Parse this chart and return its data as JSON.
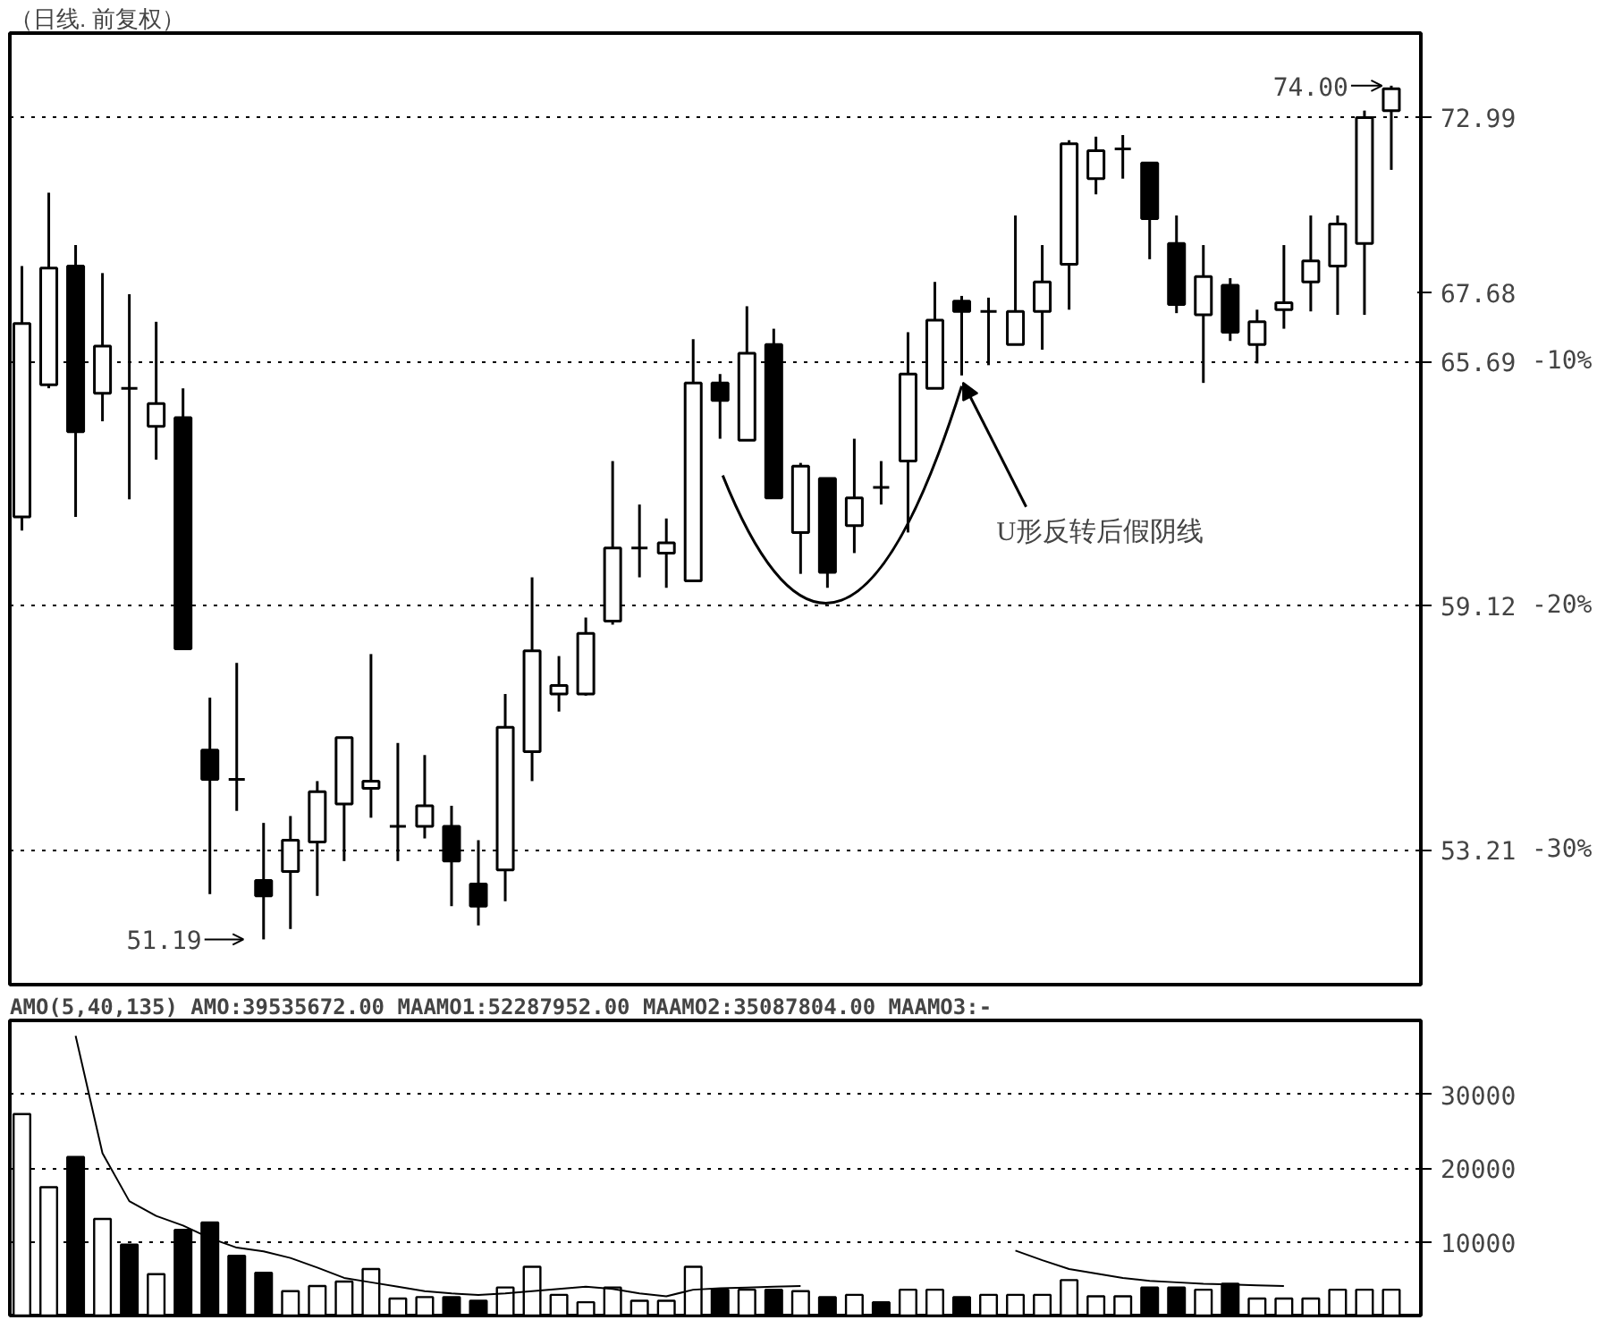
{
  "chart_data": [
    {
      "type": "candlestick",
      "title": "（日线. 前复权）",
      "categories": [
        null,
        null,
        null,
        null,
        null,
        null,
        null,
        null,
        null,
        null,
        null,
        null,
        null,
        null,
        null,
        null,
        null,
        null,
        null,
        null,
        null,
        null,
        null,
        null,
        null,
        null,
        null,
        null,
        null,
        null,
        null,
        null,
        null,
        null,
        null,
        null,
        null,
        null,
        null,
        null,
        null,
        null,
        null,
        null,
        null,
        null,
        null,
        null,
        null,
        null,
        null,
        null
      ],
      "ohlc": [
        [
          61.43,
          68.46,
          61.07,
          66.78
        ],
        [
          65.04,
          70.66,
          64.94,
          68.4
        ],
        [
          68.46,
          69.08,
          61.43,
          63.73
        ],
        [
          64.8,
          68.25,
          64.02,
          66.13
        ],
        [
          64.94,
          67.63,
          61.9,
          64.94
        ],
        [
          63.88,
          66.83,
          62.97,
          64.51
        ],
        [
          64.12,
          64.94,
          58.03,
          58.03
        ],
        [
          55.55,
          56.82,
          52.2,
          54.85
        ],
        [
          54.85,
          57.68,
          54.11,
          54.85
        ],
        [
          52.51,
          53.83,
          51.19,
          52.16
        ],
        [
          52.71,
          53.99,
          51.42,
          53.43
        ],
        [
          53.39,
          54.81,
          52.16,
          54.56
        ],
        [
          54.27,
          55.85,
          52.95,
          55.85
        ],
        [
          54.64,
          57.9,
          53.95,
          54.81
        ],
        [
          53.75,
          55.72,
          52.95,
          53.75
        ],
        [
          53.75,
          55.43,
          53.47,
          54.23
        ],
        [
          53.75,
          54.23,
          51.93,
          52.95
        ],
        [
          52.43,
          53.43,
          51.5,
          51.93
        ],
        [
          52.75,
          56.91,
          52.04,
          56.1
        ],
        [
          55.51,
          59.85,
          54.81,
          57.98
        ],
        [
          56.91,
          57.85,
          56.48,
          57.12
        ],
        [
          56.91,
          58.82,
          56.87,
          58.42
        ],
        [
          58.73,
          62.93,
          58.64,
          60.61
        ],
        [
          60.61,
          61.76,
          59.85,
          60.61
        ],
        [
          60.48,
          61.39,
          59.58,
          60.75
        ],
        [
          59.76,
          66.33,
          59.76,
          65.09
        ],
        [
          65.09,
          65.34,
          63.54,
          64.6
        ],
        [
          63.5,
          67.28,
          63.5,
          65.93
        ],
        [
          66.18,
          66.63,
          61.94,
          61.94
        ],
        [
          61.02,
          62.88,
          59.94,
          62.79
        ],
        [
          62.46,
          62.46,
          59.58,
          59.98
        ],
        [
          61.2,
          63.54,
          60.48,
          61.94
        ],
        [
          62.22,
          62.93,
          61.76,
          62.22
        ],
        [
          62.93,
          66.53,
          61.02,
          65.34
        ],
        [
          64.94,
          67.99,
          64.94,
          66.88
        ],
        [
          67.43,
          67.58,
          65.3,
          67.13
        ],
        [
          67.13,
          67.53,
          65.59,
          67.13
        ],
        [
          66.18,
          69.97,
          66.18,
          67.13
        ],
        [
          67.13,
          69.08,
          66.03,
          67.99
        ],
        [
          68.51,
          72.28,
          67.18,
          72.17
        ],
        [
          71.09,
          72.39,
          70.61,
          71.95
        ],
        [
          72.01,
          72.44,
          71.09,
          72.01
        ],
        [
          71.57,
          71.57,
          68.66,
          69.87
        ],
        [
          69.13,
          69.97,
          67.08,
          67.33
        ],
        [
          67.03,
          69.08,
          65.09,
          68.15
        ],
        [
          67.89,
          68.1,
          66.28,
          66.53
        ],
        [
          66.18,
          67.18,
          65.64,
          66.83
        ],
        [
          67.18,
          69.08,
          66.63,
          67.38
        ],
        [
          67.99,
          69.97,
          67.13,
          68.61
        ],
        [
          68.46,
          69.97,
          67.03,
          69.71
        ],
        [
          69.13,
          73.21,
          67.03,
          72.99
        ],
        [
          73.21,
          74.0,
          71.36,
          73.9
        ]
      ],
      "log": "y",
      "ylim": [
        50.2,
        75.7
      ],
      "yticks": [
        72.99,
        65.69,
        59.12,
        53.21,
        {
          "value": 67.68,
          "label": "67.68"
        }
      ],
      "y2lim": [
        -35.53,
        3.46
      ],
      "y2ticks": [
        {
          "value": -10,
          "label": "-10%"
        },
        {
          "value": -20,
          "label": "-20%"
        },
        {
          "value": -30,
          "label": "-30%"
        }
      ],
      "grid": "y",
      "annotations": [
        "74.00",
        "51.19",
        "U形反转后假阴线"
      ]
    },
    {
      "type": "bar",
      "title": "AMO(5,40,135) AMO:39535672.00 MAAMO1:52287952.00 MAAMO2:35087804.00 MAAMO3:-",
      "categories": [
        null,
        null,
        null,
        null,
        null,
        null,
        null,
        null,
        null,
        null,
        null,
        null,
        null,
        null,
        null,
        null,
        null,
        null,
        null,
        null,
        null,
        null,
        null,
        null,
        null,
        null,
        null,
        null,
        null,
        null,
        null,
        null,
        null,
        null,
        null,
        null,
        null,
        null,
        null,
        null,
        null,
        null,
        null,
        null,
        null,
        null,
        null,
        null,
        null,
        null,
        null,
        null
      ],
      "series": [
        {
          "type": "bar",
          "values": [
            27300,
            17400,
            21500,
            13100,
            9600,
            5600,
            11600,
            12600,
            8100,
            5800,
            3300,
            4000,
            4600,
            6300,
            2300,
            2500,
            2500,
            2000,
            3800,
            6600,
            2800,
            1800,
            3800,
            2000,
            2000,
            6600,
            3500,
            3500,
            3500,
            3300,
            2500,
            2800,
            1800,
            3500,
            3500,
            2500,
            2800,
            2800,
            2800,
            4800,
            2600,
            2600,
            3800,
            3800,
            3500,
            4300,
            2300,
            2300,
            2300,
            3500,
            3500,
            3500
          ],
          "colors": [
            "#ffffff",
            "#ffffff",
            "#000000",
            "#ffffff",
            "#000000",
            "#ffffff",
            "#000000",
            "#000000",
            "#000000",
            "#000000",
            "#ffffff",
            "#ffffff",
            "#ffffff",
            "#ffffff",
            "#ffffff",
            "#ffffff",
            "#000000",
            "#000000",
            "#ffffff",
            "#ffffff",
            "#ffffff",
            "#ffffff",
            "#ffffff",
            "#ffffff",
            "#ffffff",
            "#ffffff",
            "#000000",
            "#ffffff",
            "#000000",
            "#ffffff",
            "#000000",
            "#ffffff",
            "#000000",
            "#ffffff",
            "#ffffff",
            "#000000",
            "#ffffff",
            "#ffffff",
            "#ffffff",
            "#ffffff",
            "#ffffff",
            "#ffffff",
            "#000000",
            "#000000",
            "#ffffff",
            "#000000",
            "#ffffff",
            "#ffffff",
            "#ffffff",
            "#ffffff",
            "#ffffff",
            "#ffffff"
          ]
        },
        {
          "type": "line",
          "color": "#000000",
          "values": [
            null,
            null,
            37900,
            22000,
            15500,
            13500,
            12200,
            10500,
            9200,
            8700,
            7800,
            6500,
            5100,
            4500,
            3900,
            3300,
            3000,
            2800,
            3000,
            3300,
            3600,
            3900,
            3600,
            3000,
            2600,
            3500,
            3700,
            3800,
            3900,
            4000,
            null,
            null,
            null,
            null,
            null,
            null,
            null,
            null,
            null,
            null,
            null,
            null,
            null,
            null,
            null,
            null,
            null,
            null,
            null,
            null,
            null,
            null
          ]
        },
        {
          "type": "line",
          "color": "#000000",
          "values": [
            null,
            null,
            null,
            null,
            null,
            null,
            null,
            null,
            null,
            null,
            null,
            null,
            null,
            null,
            null,
            null,
            null,
            null,
            null,
            null,
            null,
            null,
            null,
            null,
            null,
            null,
            null,
            null,
            null,
            null,
            null,
            null,
            null,
            null,
            null,
            null,
            null,
            8800,
            7500,
            6300,
            5700,
            5100,
            4700,
            4500,
            4300,
            4200,
            4100,
            4000,
            null,
            null,
            null,
            null
          ]
        }
      ],
      "ylim": [
        0,
        40000
      ],
      "yticks": [
        10000,
        20000,
        30000
      ],
      "grid": "y"
    }
  ]
}
